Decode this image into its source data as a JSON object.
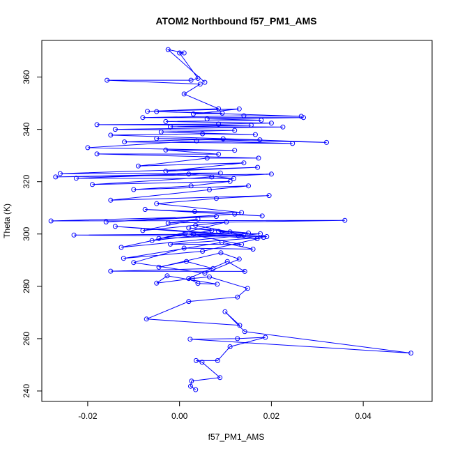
{
  "chart_data": {
    "type": "line",
    "title": "ATOM2 Northbound f57_PM1_AMS",
    "xlabel": "f57_PM1_AMS",
    "ylabel": "Theta (K)",
    "xlim": [
      -0.03,
      0.055
    ],
    "ylim": [
      236,
      374
    ],
    "xticks": [
      -0.02,
      0.0,
      0.02,
      0.04
    ],
    "xtick_labels": [
      "-0.02",
      "0.00",
      "0.02",
      "0.04"
    ],
    "yticks": [
      240,
      260,
      280,
      300,
      320,
      340,
      360
    ],
    "ytick_labels": [
      "240",
      "260",
      "280",
      "300",
      "320",
      "340",
      "360"
    ],
    "grid": false,
    "legend": "none",
    "series_color": "#0000ff",
    "marker": "open-circle",
    "series": [
      {
        "name": "f57_PM1_AMS",
        "points": [
          [
            0.0035,
            240.5
          ],
          [
            0.0024,
            241.8
          ],
          [
            0.0026,
            243.8
          ],
          [
            0.0088,
            245.1
          ],
          [
            0.0049,
            251.0
          ],
          [
            0.0036,
            251.6
          ],
          [
            0.0083,
            251.6
          ],
          [
            0.011,
            256.9
          ],
          [
            0.0187,
            260.5
          ],
          [
            0.0126,
            260.0
          ],
          [
            0.0023,
            259.8
          ],
          [
            0.0504,
            254.5
          ],
          [
            0.0142,
            262.7
          ],
          [
            0.0099,
            270.3
          ],
          [
            0.0131,
            265.1
          ],
          [
            -0.0072,
            267.5
          ],
          [
            0.002,
            274.2
          ],
          [
            0.0126,
            275.9
          ],
          [
            0.0148,
            279.2
          ],
          [
            0.0065,
            283.6
          ],
          [
            0.0028,
            283.0
          ],
          [
            -0.005,
            281.2
          ],
          [
            -0.0027,
            284.0
          ],
          [
            0.0082,
            280.8
          ],
          [
            0.004,
            281.1
          ],
          [
            0.002,
            283.0
          ],
          [
            0.0104,
            289.5
          ],
          [
            0.0142,
            285.7
          ],
          [
            -0.015,
            285.8
          ],
          [
            0.0073,
            286.8
          ],
          [
            0.0015,
            289.5
          ],
          [
            -0.0045,
            287.3
          ],
          [
            0.009,
            292.8
          ],
          [
            0.013,
            290.4
          ],
          [
            0.0055,
            285.0
          ],
          [
            -0.01,
            289.1
          ],
          [
            0.001,
            294.6
          ],
          [
            0.016,
            294.2
          ],
          [
            0.0092,
            296.8
          ],
          [
            -0.0122,
            290.7
          ],
          [
            0.005,
            293.4
          ],
          [
            0.0183,
            298.7
          ],
          [
            -0.002,
            296.1
          ],
          [
            0.0135,
            296.0
          ],
          [
            0.0012,
            300.2
          ],
          [
            -0.0127,
            294.9
          ],
          [
            0.0176,
            300.1
          ],
          [
            -0.023,
            299.6
          ],
          [
            0.019,
            299.0
          ],
          [
            -0.014,
            302.9
          ],
          [
            0.0128,
            299.3
          ],
          [
            0.003,
            299.9
          ],
          [
            0.0169,
            298.2
          ],
          [
            0.0085,
            301.0
          ],
          [
            0.015,
            300.4
          ],
          [
            0.002,
            302.3
          ],
          [
            0.007,
            301.3
          ],
          [
            -0.0045,
            298.3
          ],
          [
            0.014,
            299.6
          ],
          [
            0.0035,
            303.3
          ],
          [
            0.011,
            300.8
          ],
          [
            -0.006,
            297.5
          ],
          [
            0.0102,
            304.6
          ],
          [
            -0.008,
            301.3
          ],
          [
            0.004,
            305.7
          ],
          [
            -0.0025,
            304.2
          ],
          [
            0.036,
            305.2
          ],
          [
            -0.028,
            305.0
          ],
          [
            0.008,
            306.7
          ],
          [
            -0.016,
            304.6
          ],
          [
            0.012,
            307.6
          ],
          [
            0.018,
            306.9
          ],
          [
            -0.0075,
            309.4
          ],
          [
            0.0033,
            308.6
          ],
          [
            0.0135,
            308.2
          ],
          [
            -0.005,
            311.6
          ],
          [
            0.008,
            313.6
          ],
          [
            0.0195,
            314.7
          ],
          [
            -0.015,
            312.9
          ],
          [
            0.0065,
            316.9
          ],
          [
            0.015,
            318.4
          ],
          [
            -0.01,
            317.0
          ],
          [
            0.0025,
            318.4
          ],
          [
            0.011,
            320.1
          ],
          [
            -0.019,
            318.9
          ],
          [
            0.007,
            321.8
          ],
          [
            0.02,
            322.9
          ],
          [
            -0.027,
            321.8
          ],
          [
            0.002,
            322.9
          ],
          [
            0.0118,
            321.2
          ],
          [
            -0.0225,
            321.3
          ],
          [
            0.0089,
            323.3
          ],
          [
            -0.026,
            323.1
          ],
          [
            0.017,
            325.5
          ],
          [
            -0.003,
            324.0
          ],
          [
            0.014,
            327.2
          ],
          [
            -0.009,
            326.0
          ],
          [
            0.006,
            329.0
          ],
          [
            0.0172,
            329.0
          ],
          [
            -0.018,
            330.6
          ],
          [
            0.0085,
            330.5
          ],
          [
            -0.003,
            332.1
          ],
          [
            0.012,
            332.0
          ],
          [
            -0.02,
            333.0
          ],
          [
            0.0037,
            335.6
          ],
          [
            0.0246,
            334.6
          ],
          [
            -0.012,
            335.2
          ],
          [
            0.0095,
            336.4
          ],
          [
            0.032,
            335.0
          ],
          [
            -0.005,
            336.5
          ],
          [
            0.0175,
            336.0
          ],
          [
            -0.015,
            337.8
          ],
          [
            0.005,
            338.3
          ],
          [
            0.0165,
            338.0
          ],
          [
            -0.004,
            339.0
          ],
          [
            0.012,
            339.6
          ],
          [
            -0.014,
            340.0
          ],
          [
            0.0225,
            340.9
          ],
          [
            -0.002,
            341.0
          ],
          [
            0.0156,
            341.6
          ],
          [
            -0.018,
            341.8
          ],
          [
            0.0085,
            342.0
          ],
          [
            0.02,
            342.4
          ],
          [
            -0.003,
            343.0
          ],
          [
            0.0178,
            343.5
          ],
          [
            0.006,
            344.0
          ],
          [
            0.027,
            344.5
          ],
          [
            -0.008,
            344.5
          ],
          [
            0.014,
            345.2
          ],
          [
            0.0265,
            345.0
          ],
          [
            -0.005,
            346.8
          ],
          [
            0.0093,
            346.2
          ],
          [
            0.003,
            345.9
          ],
          [
            0.013,
            347.8
          ],
          [
            -0.007,
            346.9
          ],
          [
            0.0085,
            347.9
          ],
          [
            0.001,
            353.5
          ],
          [
            0.0045,
            357.3
          ],
          [
            -0.0158,
            358.8
          ],
          [
            0.0025,
            358.8
          ],
          [
            0.004,
            359.5
          ],
          [
            0.0,
            369.2
          ],
          [
            0.001,
            369.2
          ],
          [
            -0.0025,
            370.5
          ],
          [
            0.0055,
            358.0
          ]
        ]
      }
    ]
  }
}
